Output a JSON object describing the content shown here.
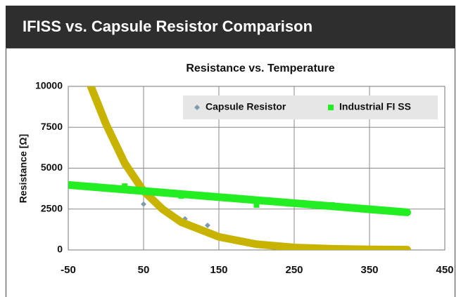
{
  "header": {
    "title": "IFISS vs. Capsule Resistor Comparison"
  },
  "chart_data": {
    "type": "scatter",
    "title": "Resistance vs. Temperature",
    "ylabel": "Resistance [Ω]",
    "xlim": [
      -50,
      450
    ],
    "xticks": [
      -50,
      50,
      150,
      250,
      350,
      450
    ],
    "ylim": [
      0,
      10000
    ],
    "yticks": [
      0,
      2500,
      5000,
      7500,
      10000
    ],
    "grid": true,
    "legend": "top-right",
    "series": [
      {
        "name": "Capsule Resistor",
        "color": "#7f9bb0",
        "x": [
          25,
          50,
          78,
          105,
          135
        ],
        "values": [
          5100,
          2800,
          2350,
          1900,
          1500
        ]
      },
      {
        "name": "Industrial FI SS",
        "color": "#22ee22",
        "x": [
          25,
          100,
          200,
          300
        ],
        "values": [
          3900,
          3300,
          2750,
          2750
        ]
      }
    ],
    "trendlines": [
      {
        "color": "#c8b400",
        "x": [
          -20,
          0,
          25,
          50,
          75,
          100,
          150,
          200,
          250,
          300,
          350,
          400
        ],
        "values": [
          10000,
          7700,
          5300,
          3600,
          2500,
          1700,
          800,
          350,
          150,
          70,
          30,
          15
        ]
      },
      {
        "color": "#22ee22",
        "x": [
          -70,
          150,
          400
        ],
        "values": [
          4050,
          3230,
          2300
        ]
      }
    ]
  }
}
